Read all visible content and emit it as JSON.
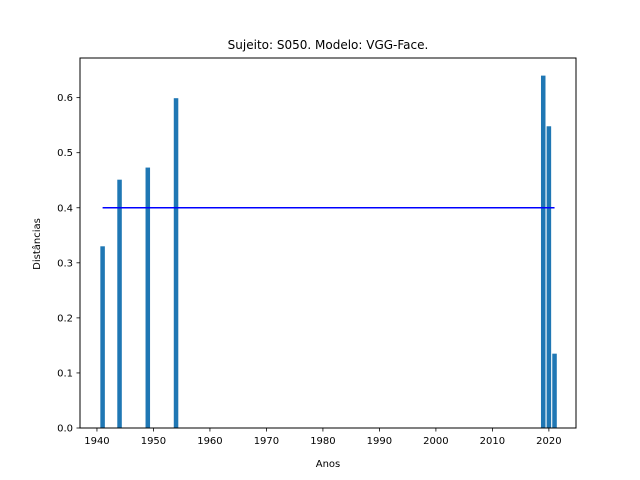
{
  "chart_data": {
    "type": "bar",
    "title": "Sujeito: S050. Modelo: VGG-Face.",
    "xlabel": "Anos",
    "ylabel": "Distâncias",
    "bar_color": "#1f77b4",
    "threshold_color": "#0000ff",
    "x": [
      1941,
      1944,
      1949,
      1954,
      2019,
      2020,
      2021
    ],
    "values": [
      0.33,
      0.451,
      0.473,
      0.599,
      0.64,
      0.548,
      0.135
    ],
    "bar_width_years": 0.8,
    "threshold": {
      "value": 0.4,
      "x_start": 1941,
      "x_end": 2021
    },
    "xlim": [
      1937.0,
      2024.8
    ],
    "ylim": [
      0,
      0.672
    ],
    "xticks": [
      1940,
      1950,
      1960,
      1970,
      1980,
      1990,
      2000,
      2010,
      2020
    ],
    "yticks": [
      0.0,
      0.1,
      0.2,
      0.3,
      0.4,
      0.5,
      0.6
    ],
    "ytick_labels": [
      "0.0",
      "0.1",
      "0.2",
      "0.3",
      "0.4",
      "0.5",
      "0.6"
    ],
    "grid": false
  }
}
